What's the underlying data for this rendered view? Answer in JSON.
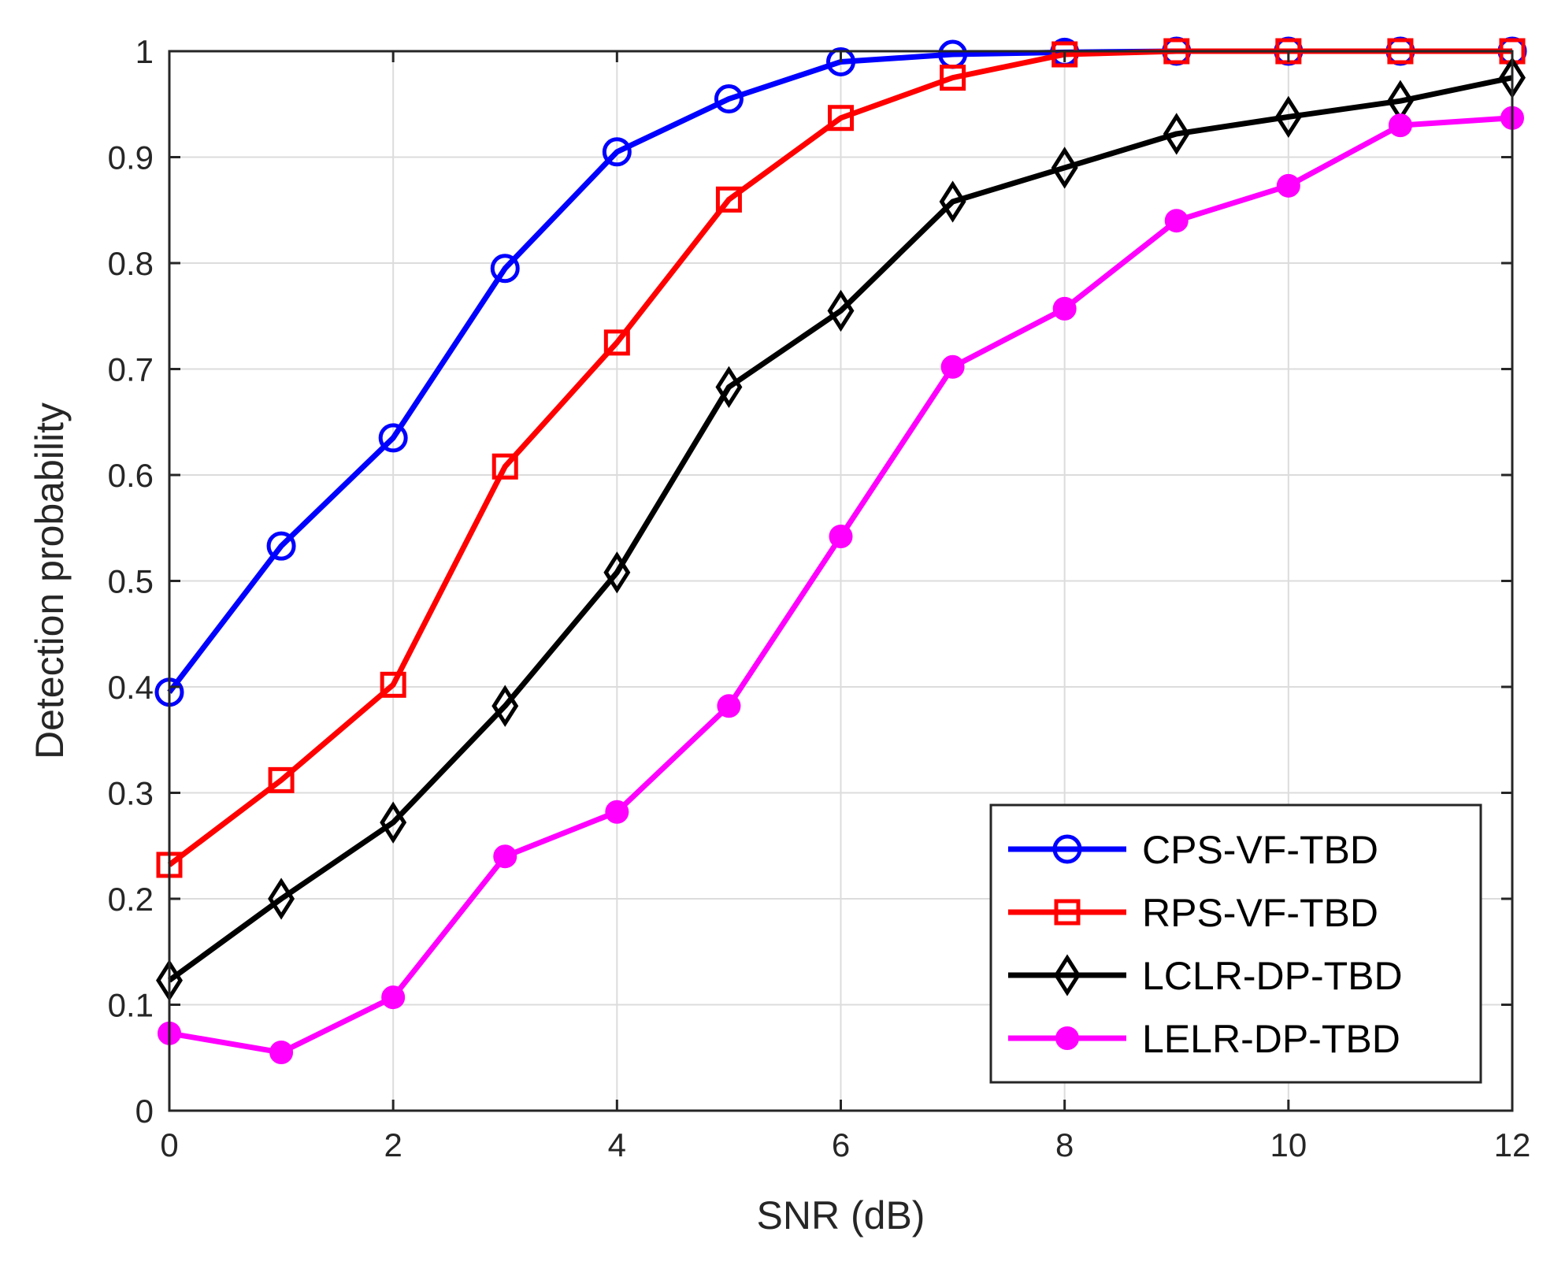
{
  "chart_data": {
    "type": "line",
    "xlabel": "SNR (dB)",
    "ylabel": "Detection probability",
    "xlim": [
      0,
      12
    ],
    "ylim": [
      0,
      1
    ],
    "xticks": [
      0,
      2,
      4,
      6,
      8,
      10,
      12
    ],
    "yticks": [
      0,
      0.1,
      0.2,
      0.3,
      0.4,
      0.5,
      0.6,
      0.7,
      0.8,
      0.9,
      1
    ],
    "xtick_labels": [
      "0",
      "2",
      "4",
      "6",
      "8",
      "10",
      "12"
    ],
    "ytick_labels": [
      "0",
      "0.1",
      "0.2",
      "0.3",
      "0.4",
      "0.5",
      "0.6",
      "0.7",
      "0.8",
      "0.9",
      "1"
    ],
    "grid": true,
    "legend_position": "bottom-right",
    "x": [
      0,
      1,
      2,
      3,
      4,
      5,
      6,
      7,
      8,
      9,
      10,
      11,
      12
    ],
    "series": [
      {
        "name": "CPS-VF-TBD",
        "color": "#0000ff",
        "marker": "circle-open",
        "values": [
          0.395,
          0.533,
          0.635,
          0.795,
          0.905,
          0.955,
          0.99,
          0.997,
          0.999,
          1.0,
          1.0,
          1.0,
          1.0
        ]
      },
      {
        "name": "RPS-VF-TBD",
        "color": "#ff0000",
        "marker": "square-open",
        "values": [
          0.232,
          0.312,
          0.402,
          0.608,
          0.725,
          0.86,
          0.937,
          0.975,
          0.997,
          1.0,
          1.0,
          1.0,
          1.0
        ]
      },
      {
        "name": "LCLR-DP-TBD",
        "color": "#000000",
        "marker": "diamond-open",
        "values": [
          0.123,
          0.2,
          0.272,
          0.382,
          0.508,
          0.683,
          0.755,
          0.858,
          0.89,
          0.922,
          0.938,
          0.953,
          0.975
        ]
      },
      {
        "name": "LELR-DP-TBD",
        "color": "#ff00ff",
        "marker": "circle-filled",
        "values": [
          0.073,
          0.055,
          0.107,
          0.24,
          0.282,
          0.382,
          0.542,
          0.702,
          0.757,
          0.84,
          0.873,
          0.93,
          0.937
        ]
      }
    ]
  }
}
